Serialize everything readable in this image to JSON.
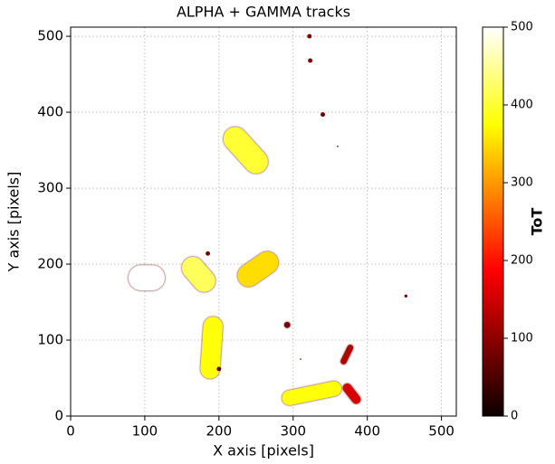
{
  "chart_data": {
    "type": "tracks",
    "title": "ALPHA + GAMMA tracks",
    "x_label": "X axis [pixels]",
    "y_label": "Y axis [pixels]",
    "xlim": [
      0,
      520
    ],
    "ylim": [
      0,
      512
    ],
    "xticks": [
      0,
      100,
      200,
      300,
      400,
      500
    ],
    "yticks": [
      0,
      100,
      200,
      300,
      400,
      500
    ],
    "grid": true,
    "colormap": "hot",
    "colorbar_label": "ToT",
    "clim": [
      0,
      500
    ],
    "cticks": [
      0,
      100,
      200,
      300,
      400,
      500
    ],
    "tracks": [
      {
        "x1": 95,
        "y1": 182,
        "x2": 110,
        "y2": 182,
        "width": 17,
        "tot": 500
      },
      {
        "x1": 165,
        "y1": 195,
        "x2": 180,
        "y2": 178,
        "width": 15,
        "tot": 420
      },
      {
        "x1": 240,
        "y1": 185,
        "x2": 265,
        "y2": 202,
        "width": 15,
        "tot": 350
      },
      {
        "x1": 222,
        "y1": 365,
        "x2": 250,
        "y2": 335,
        "width": 16,
        "tot": 400
      },
      {
        "x1": 192,
        "y1": 118,
        "x2": 188,
        "y2": 62,
        "width": 13,
        "tot": 380
      },
      {
        "x1": 295,
        "y1": 24,
        "x2": 355,
        "y2": 36,
        "width": 10,
        "tot": 380
      },
      {
        "x1": 373,
        "y1": 37,
        "x2": 385,
        "y2": 22,
        "width": 6,
        "tot": 150
      },
      {
        "x1": 377,
        "y1": 90,
        "x2": 368,
        "y2": 72,
        "width": 4,
        "tot": 120
      },
      {
        "x1": 322,
        "y1": 500,
        "x2": 322,
        "y2": 500,
        "width": 3,
        "tot": 80
      },
      {
        "x1": 323,
        "y1": 468,
        "x2": 323,
        "y2": 468,
        "width": 3,
        "tot": 90
      },
      {
        "x1": 340,
        "y1": 397,
        "x2": 340,
        "y2": 397,
        "width": 3,
        "tot": 70
      },
      {
        "x1": 292,
        "y1": 120,
        "x2": 292,
        "y2": 120,
        "width": 4,
        "tot": 80
      },
      {
        "x1": 185,
        "y1": 214,
        "x2": 185,
        "y2": 214,
        "width": 3,
        "tot": 80
      },
      {
        "x1": 452,
        "y1": 158,
        "x2": 452,
        "y2": 158,
        "width": 2,
        "tot": 70
      },
      {
        "x1": 200,
        "y1": 62,
        "x2": 200,
        "y2": 62,
        "width": 3,
        "tot": 60
      },
      {
        "x1": 360,
        "y1": 355,
        "x2": 360,
        "y2": 355,
        "width": 1,
        "tot": 60
      },
      {
        "x1": 310,
        "y1": 75,
        "x2": 310,
        "y2": 75,
        "width": 1,
        "tot": 60
      }
    ]
  }
}
